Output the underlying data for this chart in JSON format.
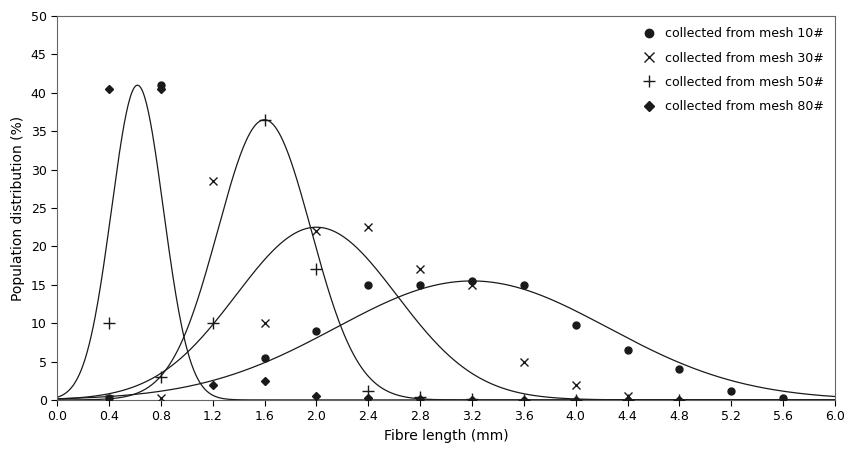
{
  "title": "",
  "xlabel": "Fibre length (mm)",
  "ylabel": "Population distribution (%)",
  "xlim": [
    0,
    6
  ],
  "ylim": [
    0,
    50
  ],
  "xticks": [
    0,
    0.4,
    0.8,
    1.2,
    1.6,
    2.0,
    2.4,
    2.8,
    3.2,
    3.6,
    4.0,
    4.4,
    4.8,
    5.2,
    5.6,
    6.0
  ],
  "yticks": [
    0,
    5,
    10,
    15,
    20,
    25,
    30,
    35,
    40,
    45,
    50
  ],
  "series": [
    {
      "label": "collected from mesh 10#",
      "marker": "o",
      "color": "#1a1a1a",
      "markersize": 5,
      "mu": 3.2,
      "sigma": 1.05,
      "amp": 15.5,
      "pts_x": [
        0.4,
        0.8,
        1.6,
        2.0,
        2.4,
        2.8,
        3.2,
        3.6,
        4.0,
        4.4,
        4.8,
        5.2,
        5.6
      ],
      "pts_y": [
        0.2,
        41.0,
        5.5,
        9.0,
        15.0,
        15.0,
        15.5,
        15.0,
        9.8,
        6.5,
        4.0,
        1.2,
        0.3
      ]
    },
    {
      "label": "collected from mesh 30#",
      "marker": "x",
      "color": "#1a1a1a",
      "markersize": 6,
      "mu": 2.0,
      "sigma": 0.65,
      "amp": 22.5,
      "pts_x": [
        0.4,
        0.8,
        1.2,
        1.6,
        2.0,
        2.4,
        2.8,
        3.2,
        3.6,
        4.0,
        4.4
      ],
      "pts_y": [
        0.1,
        0.3,
        28.5,
        10.0,
        22.0,
        22.5,
        17.0,
        15.0,
        5.0,
        2.0,
        0.5
      ]
    },
    {
      "label": "collected from mesh 50#",
      "marker": "+",
      "color": "#1a1a1a",
      "markersize": 7,
      "mu": 1.6,
      "sigma": 0.38,
      "amp": 36.5,
      "pts_x": [
        0.4,
        0.8,
        1.2,
        1.6,
        2.0,
        2.4,
        2.8,
        3.2,
        3.6,
        4.0,
        4.4,
        4.8
      ],
      "pts_y": [
        10.0,
        3.0,
        10.0,
        36.5,
        17.0,
        1.2,
        0.4,
        0.1,
        0.0,
        0.0,
        0.0,
        0.0
      ]
    },
    {
      "label": "collected from mesh 80#",
      "marker": "D",
      "color": "#1a1a1a",
      "markersize": 4,
      "mu": 0.75,
      "sigma": 0.22,
      "amp": 41.0,
      "pts_x": [
        0.4,
        0.8,
        1.2,
        1.6,
        2.0,
        2.4,
        2.8,
        3.2,
        3.6,
        4.0,
        4.4,
        4.8
      ],
      "pts_y": [
        40.5,
        40.5,
        2.0,
        2.5,
        0.5,
        0.2,
        0.1,
        0.05,
        0.0,
        0.0,
        0.0,
        0.0
      ]
    }
  ]
}
